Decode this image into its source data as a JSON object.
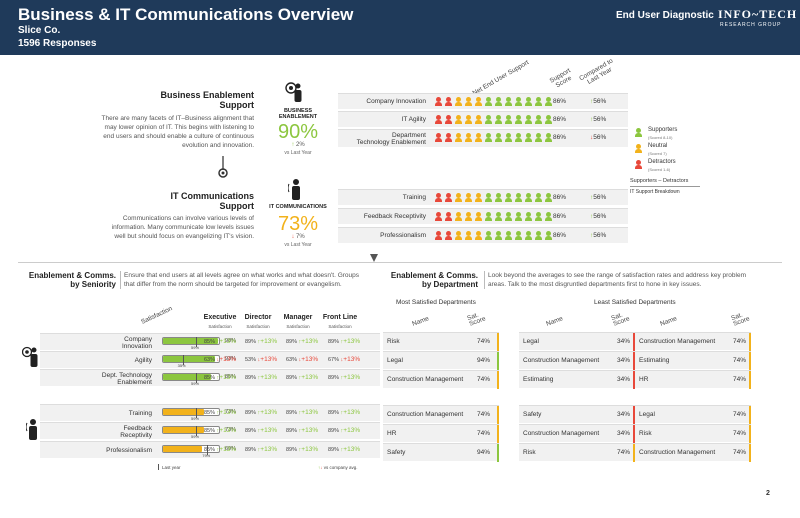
{
  "header": {
    "title": "Business & IT Communications Overview",
    "company": "Slice Co.",
    "responses": "1596 Responses",
    "diagnostic": "End User Diagnostic",
    "logo": "INFO~TECH",
    "logo_sub": "RESEARCH GROUP"
  },
  "top_columns": {
    "net": "Net End User Support",
    "score": "Support Score",
    "compared": "Compared to Last Year"
  },
  "business_enablement": {
    "title_1": "Business Enablement",
    "title_2": "Support",
    "desc_1": "There are many facets of IT–Business alignment that",
    "desc_2": "may lower opinion of IT. This begins with listening to",
    "desc_3": "end users and should enable a culture of continuous",
    "desc_4": "evolution and innovation.",
    "label_1": "BUSINESS",
    "label_2": "ENABLEMENT",
    "value": "90%",
    "delta": "2%",
    "vs": "vs Last Year",
    "rows": [
      {
        "label": "Company Innovation",
        "score": "86%",
        "compared": "56%",
        "dir": "up"
      },
      {
        "label": "IT Agility",
        "score": "86%",
        "compared": "56%",
        "dir": "up"
      },
      {
        "label_1": "Department",
        "label_2": "Technology Enablement",
        "score": "86%",
        "compared": "56%",
        "dir": "down"
      }
    ]
  },
  "communications": {
    "title_1": "IT Communications",
    "title_2": "Support",
    "desc_1": "Communications can involve various levels of",
    "desc_2": "information. Many communicate low levels issues",
    "desc_3": "well but should focus on evangelizing IT's vision.",
    "label": "IT COMMUNICATIONS",
    "value": "73%",
    "delta": "7%",
    "vs": "vs Last Year",
    "rows": [
      {
        "label": "Training",
        "score": "86%",
        "compared": "56%",
        "dir": "up"
      },
      {
        "label": "Feedback Receptivity",
        "score": "86%",
        "compared": "56%",
        "dir": "up"
      },
      {
        "label": "Professionalism",
        "score": "86%",
        "compared": "56%",
        "dir": "up"
      }
    ]
  },
  "legend": {
    "supporters": "Supporters",
    "supporters_sub": "(Scored 8-10)",
    "neutral": "Neutral",
    "neutral_sub": "(Scored 7)",
    "detractors": "Detractors",
    "detractors_sub": "(Scored 1-6)",
    "formula": "Supporters  –  Detractors",
    "caption": "IT Support Breakdown"
  },
  "seniority": {
    "title_1": "Enablement & Comms.",
    "title_2": "by Seniority",
    "desc_1": "Ensure that end users at all levels agree on what works and what doesn't. Groups",
    "desc_2": "that differ from the norm should be targeted for improvement or evangelism.",
    "sat_header": "Satisfaction",
    "columns": [
      {
        "name": "Executive",
        "sub": "Satisfaction"
      },
      {
        "name": "Director",
        "sub": "Satisfaction"
      },
      {
        "name": "Manager",
        "sub": "Satisfaction"
      },
      {
        "name": "Front Line",
        "sub": "Satisfaction"
      }
    ],
    "rows": [
      {
        "label_1": "Company",
        "label_2": "Innovation",
        "sat": 0.98,
        "pct": "98%",
        "ly": "59%",
        "ly_frac": 0.59,
        "color": "#8cc63f",
        "cells": [
          {
            "p": "85%",
            "d": "+13%",
            "u": true
          },
          {
            "p": "89%",
            "d": "+13%",
            "u": true
          },
          {
            "p": "89%",
            "d": "+13%",
            "u": true
          },
          {
            "p": "89%",
            "d": "+13%",
            "u": true
          }
        ]
      },
      {
        "label_1": "Agility",
        "label_2": "",
        "sat": 0.93,
        "pct": "93%",
        "ly": "35%",
        "ly_frac": 0.35,
        "color": "#8cc63f",
        "cells": [
          {
            "p": "63%",
            "d": "+13%",
            "u": false
          },
          {
            "p": "53%",
            "d": "+13%",
            "u": false
          },
          {
            "p": "63%",
            "d": "+13%",
            "u": false
          },
          {
            "p": "67%",
            "d": "+13%",
            "u": false
          }
        ]
      },
      {
        "label_1": "Dept. Technology",
        "label_2": "Enablement",
        "sat": 0.85,
        "pct": "85%",
        "ly": "59%",
        "ly_frac": 0.59,
        "color": "#8cc63f",
        "cells": [
          {
            "p": "85%",
            "d": "+13%",
            "u": true
          },
          {
            "p": "89%",
            "d": "+13%",
            "u": true
          },
          {
            "p": "89%",
            "d": "+13%",
            "u": true
          },
          {
            "p": "89%",
            "d": "+13%",
            "u": true
          }
        ]
      },
      {
        "label_1": "Training",
        "label_2": "",
        "sat": 0.73,
        "pct": "73%",
        "ly": "59%",
        "ly_frac": 0.59,
        "color": "#f2b21b",
        "cells": [
          {
            "p": "85%",
            "d": "+13%",
            "u": true
          },
          {
            "p": "89%",
            "d": "+13%",
            "u": true
          },
          {
            "p": "89%",
            "d": "+13%",
            "u": true
          },
          {
            "p": "89%",
            "d": "+13%",
            "u": true
          }
        ]
      },
      {
        "label_1": "Feedback",
        "label_2": "Receptivity",
        "sat": 0.73,
        "pct": "73%",
        "ly": "59%",
        "ly_frac": 0.59,
        "color": "#f2b21b",
        "cells": [
          {
            "p": "85%",
            "d": "+13%",
            "u": true
          },
          {
            "p": "89%",
            "d": "+13%",
            "u": true
          },
          {
            "p": "89%",
            "d": "+13%",
            "u": true
          },
          {
            "p": "89%",
            "d": "+13%",
            "u": true
          }
        ]
      },
      {
        "label_1": "Professionalism",
        "label_2": "",
        "sat": 0.69,
        "pct": "69%",
        "ly": "79%",
        "ly_frac": 0.79,
        "color": "#f2b21b",
        "cells": [
          {
            "p": "85%",
            "d": "+13%",
            "u": true
          },
          {
            "p": "89%",
            "d": "+13%",
            "u": true
          },
          {
            "p": "89%",
            "d": "+13%",
            "u": true
          },
          {
            "p": "89%",
            "d": "+13%",
            "u": true
          }
        ]
      }
    ],
    "footer_last_year": "Last year",
    "footer_vs": "vs company avg."
  },
  "department": {
    "title_1": "Enablement & Comms.",
    "title_2": "by Department",
    "desc_1": "Look beyond the averages to see the range of satisfaction rates and address key problem",
    "desc_2": "areas. Talk to the most disgruntled departments first to hone in key issues.",
    "most_title": "Most Satisfied Departments",
    "least_title": "Least Satisfied Departments",
    "name_hdr": "Name",
    "score_hdr": "Sat. Score",
    "most": [
      [
        {
          "n": "Risk",
          "s": "74%",
          "c": "#f2b21b"
        },
        {
          "n": "Legal",
          "s": "94%",
          "c": "#8cc63f"
        },
        {
          "n": "Construction Management",
          "s": "74%",
          "c": "#f2b21b"
        }
      ],
      [
        {
          "n": "Construction Management",
          "s": "74%",
          "c": "#f2b21b"
        },
        {
          "n": "HR",
          "s": "74%",
          "c": "#f2b21b"
        },
        {
          "n": "Safety",
          "s": "94%",
          "c": "#8cc63f"
        }
      ]
    ],
    "least_left": [
      [
        {
          "n": "Legal",
          "s": "34%",
          "c": "#e8483a"
        },
        {
          "n": "Construction Management",
          "s": "34%",
          "c": "#e8483a"
        },
        {
          "n": "Estimating",
          "s": "34%",
          "c": "#e8483a"
        }
      ],
      [
        {
          "n": "Safety",
          "s": "34%",
          "c": "#e8483a"
        },
        {
          "n": "Construction Management",
          "s": "34%",
          "c": "#e8483a"
        },
        {
          "n": "Risk",
          "s": "74%",
          "c": "#f2b21b"
        }
      ]
    ],
    "least_right": [
      [
        {
          "n": "Construction Management",
          "s": "74%",
          "c": "#f2b21b"
        },
        {
          "n": "Estimating",
          "s": "74%",
          "c": "#f2b21b"
        },
        {
          "n": "HR",
          "s": "74%",
          "c": "#f2b21b"
        }
      ],
      [
        {
          "n": "Legal",
          "s": "74%",
          "c": "#f2b21b"
        },
        {
          "n": "Risk",
          "s": "74%",
          "c": "#f2b21b"
        },
        {
          "n": "Construction Management",
          "s": "74%",
          "c": "#f2b21b"
        }
      ]
    ]
  },
  "page_number": "2",
  "colors": {
    "green": "#8cc63f",
    "yellow": "#f2b21b",
    "red": "#e8483a",
    "navy": "#1f3a5a"
  }
}
